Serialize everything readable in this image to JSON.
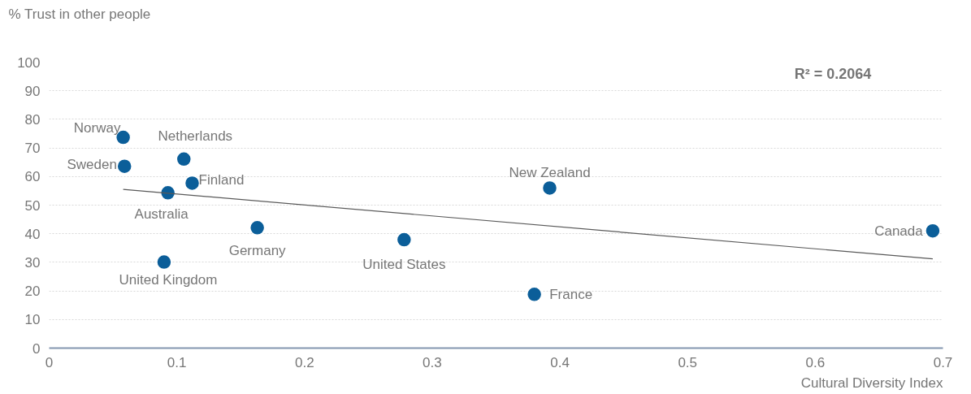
{
  "chart_data": {
    "type": "scatter",
    "xlabel": "Cultural Diversity Index",
    "ylabel": "% Trust in other people",
    "series": [
      {
        "marker": "circle",
        "color": "#0b5e99",
        "x": [
          0.058,
          0.059,
          0.1055,
          0.112,
          0.093,
          0.163,
          0.09,
          0.278,
          0.392,
          0.38,
          0.692
        ],
        "values": [
          73.7,
          63.6,
          66.1,
          57.7,
          54.3,
          42.1,
          30.1,
          37.9,
          56.0,
          18.8,
          41.0
        ]
      },
      {
        "type": "line",
        "marker": "none",
        "color": "#595959",
        "x": [
          0.058,
          0.692
        ],
        "values": [
          55.5,
          31.2
        ]
      }
    ],
    "annotations": [
      {
        "text": "Norway",
        "x": 0.058,
        "y": 73.7
      },
      {
        "text": "Sweden",
        "x": 0.059,
        "y": 63.6
      },
      {
        "text": "Netherlands",
        "x": 0.1055,
        "y": 66.1
      },
      {
        "text": "Finland",
        "x": 0.112,
        "y": 57.7
      },
      {
        "text": "Australia",
        "x": 0.093,
        "y": 54.3
      },
      {
        "text": "Germany",
        "x": 0.163,
        "y": 42.1
      },
      {
        "text": "United Kingdom",
        "x": 0.09,
        "y": 30.1
      },
      {
        "text": "United States",
        "x": 0.278,
        "y": 37.9
      },
      {
        "text": "New Zealand",
        "x": 0.392,
        "y": 56.0
      },
      {
        "text": "France",
        "x": 0.38,
        "y": 18.8
      },
      {
        "text": "Canada",
        "x": 0.692,
        "y": 41.0
      },
      "R² = 0.2064"
    ],
    "xlim": [
      0,
      0.7
    ],
    "ylim": [
      0,
      100
    ],
    "xticks": [
      0,
      0.1,
      0.2,
      0.3,
      0.4,
      0.5,
      0.6,
      0.7
    ],
    "yticks": [
      0,
      10,
      20,
      30,
      40,
      50,
      60,
      70,
      80,
      90,
      100
    ],
    "grid": "y"
  }
}
